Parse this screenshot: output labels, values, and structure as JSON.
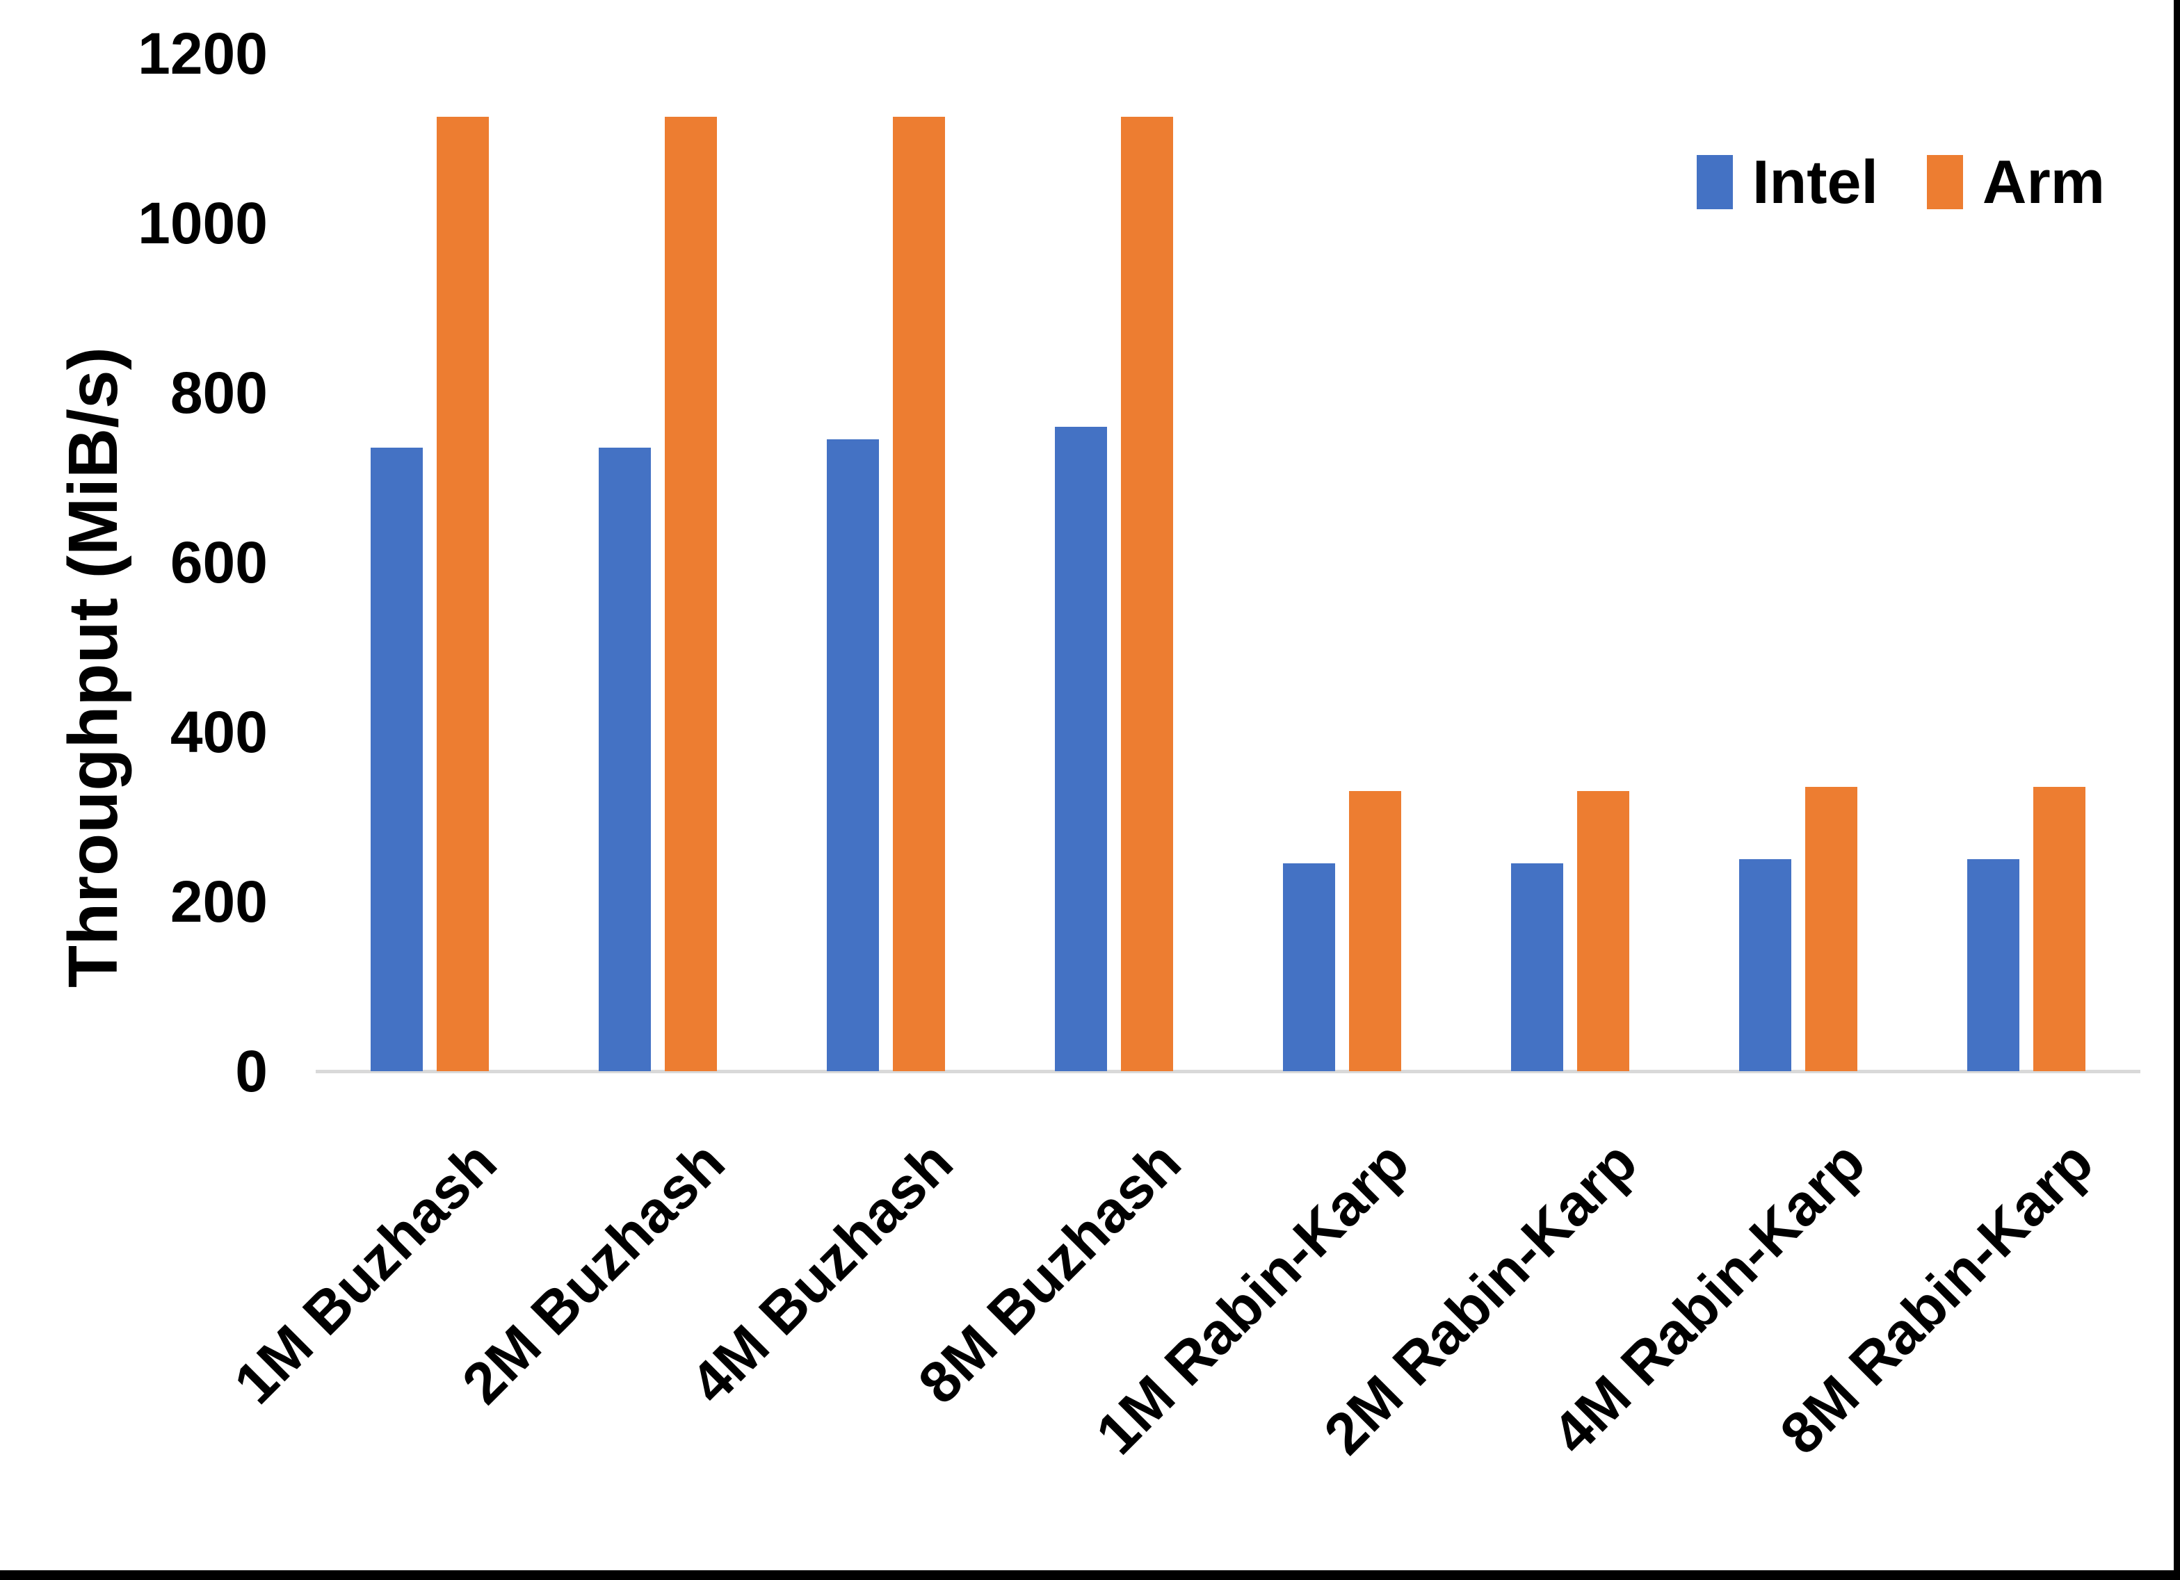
{
  "chart_data": {
    "type": "bar",
    "title": "",
    "ylabel": "Throughput (MiB/s)",
    "xlabel": "",
    "ylim": [
      0,
      1200
    ],
    "ytick_interval": 200,
    "yticks": [
      1200,
      1000,
      800,
      600,
      400,
      200,
      0
    ],
    "grid": false,
    "legend_position": "top-right",
    "categories": [
      "1M Buzhash",
      "2M Buzhash",
      "4M Buzhash",
      "8M Buzhash",
      "1M Rabin-Karp",
      "2M Rabin-Karp",
      "4M Rabin-Karp",
      "8M Rabin-Karp"
    ],
    "series": [
      {
        "name": "Intel",
        "color": "#4472C4",
        "values": [
          735,
          735,
          745,
          760,
          245,
          245,
          250,
          250
        ]
      },
      {
        "name": "Arm",
        "color": "#ED7D31",
        "values": [
          1125,
          1125,
          1125,
          1125,
          330,
          330,
          335,
          335
        ]
      }
    ]
  },
  "colors": {
    "background": "#FFFFFF",
    "axis_line": "#D9D9D9",
    "text": "#000000",
    "frame": "#000000"
  }
}
